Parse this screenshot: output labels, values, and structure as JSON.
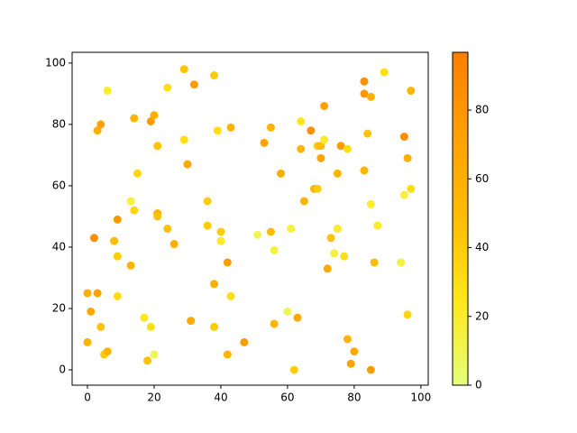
{
  "chart_data": {
    "type": "scatter",
    "x": [
      0,
      0,
      1,
      2,
      3,
      3,
      4,
      4,
      5,
      6,
      6,
      8,
      9,
      9,
      9,
      13,
      13,
      14,
      14,
      15,
      17,
      18,
      19,
      19,
      20,
      20,
      21,
      21,
      21,
      24,
      24,
      26,
      29,
      29,
      30,
      31,
      32,
      36,
      36,
      38,
      38,
      38,
      39,
      40,
      40,
      42,
      42,
      43,
      43,
      47,
      51,
      53,
      55,
      55,
      56,
      56,
      58,
      60,
      61,
      62,
      63,
      64,
      64,
      65,
      67,
      68,
      69,
      69,
      70,
      70,
      71,
      71,
      72,
      73,
      74,
      75,
      75,
      76,
      77,
      78,
      78,
      79,
      80,
      83,
      83,
      83,
      84,
      85,
      85,
      85,
      86,
      87,
      89,
      94,
      95,
      95,
      96,
      96,
      97,
      97
    ],
    "values": [
      25,
      9,
      19,
      43,
      78,
      25,
      80,
      14,
      5,
      6,
      91,
      42,
      49,
      37,
      24,
      34,
      55,
      52,
      82,
      64,
      17,
      3,
      14,
      81,
      83,
      5,
      51,
      50,
      73,
      92,
      46,
      41,
      98,
      75,
      67,
      16,
      93,
      55,
      47,
      96,
      28,
      14,
      78,
      45,
      42,
      35,
      5,
      79,
      24,
      9,
      44,
      74,
      45,
      79,
      39,
      15,
      64,
      19,
      46,
      0,
      17,
      81,
      72,
      55,
      78,
      59,
      59,
      73,
      69,
      73,
      75,
      86,
      33,
      43,
      38,
      46,
      64,
      73,
      37,
      72,
      10,
      2,
      6,
      94,
      90,
      65,
      77,
      89,
      54,
      0,
      35,
      47,
      97,
      35,
      76,
      57,
      69,
      18,
      91,
      59
    ],
    "color_values": [
      60,
      55,
      65,
      85,
      60,
      70,
      70,
      45,
      40,
      55,
      20,
      50,
      80,
      40,
      30,
      55,
      15,
      35,
      55,
      35,
      25,
      45,
      30,
      75,
      60,
      10,
      55,
      45,
      45,
      30,
      45,
      60,
      45,
      30,
      65,
      65,
      75,
      40,
      40,
      40,
      60,
      40,
      30,
      40,
      20,
      75,
      55,
      55,
      30,
      75,
      10,
      70,
      50,
      55,
      15,
      55,
      60,
      10,
      15,
      40,
      65,
      25,
      55,
      55,
      85,
      55,
      40,
      40,
      70,
      50,
      20,
      70,
      65,
      45,
      15,
      20,
      55,
      75,
      30,
      30,
      55,
      70,
      65,
      85,
      80,
      55,
      45,
      60,
      20,
      75,
      50,
      20,
      30,
      15,
      85,
      15,
      60,
      35,
      55,
      30
    ],
    "colormap": [
      "#e4ff7a",
      "#ffe81a",
      "#ffbd00",
      "#ffa000",
      "#fc7f00"
    ],
    "xlim": [
      -4.6,
      102.2
    ],
    "xticks": [
      0,
      20,
      40,
      60,
      80,
      100
    ],
    "ylim": [
      -5,
      103.5
    ],
    "yticks": [
      0,
      20,
      40,
      60,
      80,
      100
    ],
    "clim": [
      0,
      96.8
    ],
    "cticks": [
      0,
      20,
      40,
      60,
      80
    ]
  }
}
